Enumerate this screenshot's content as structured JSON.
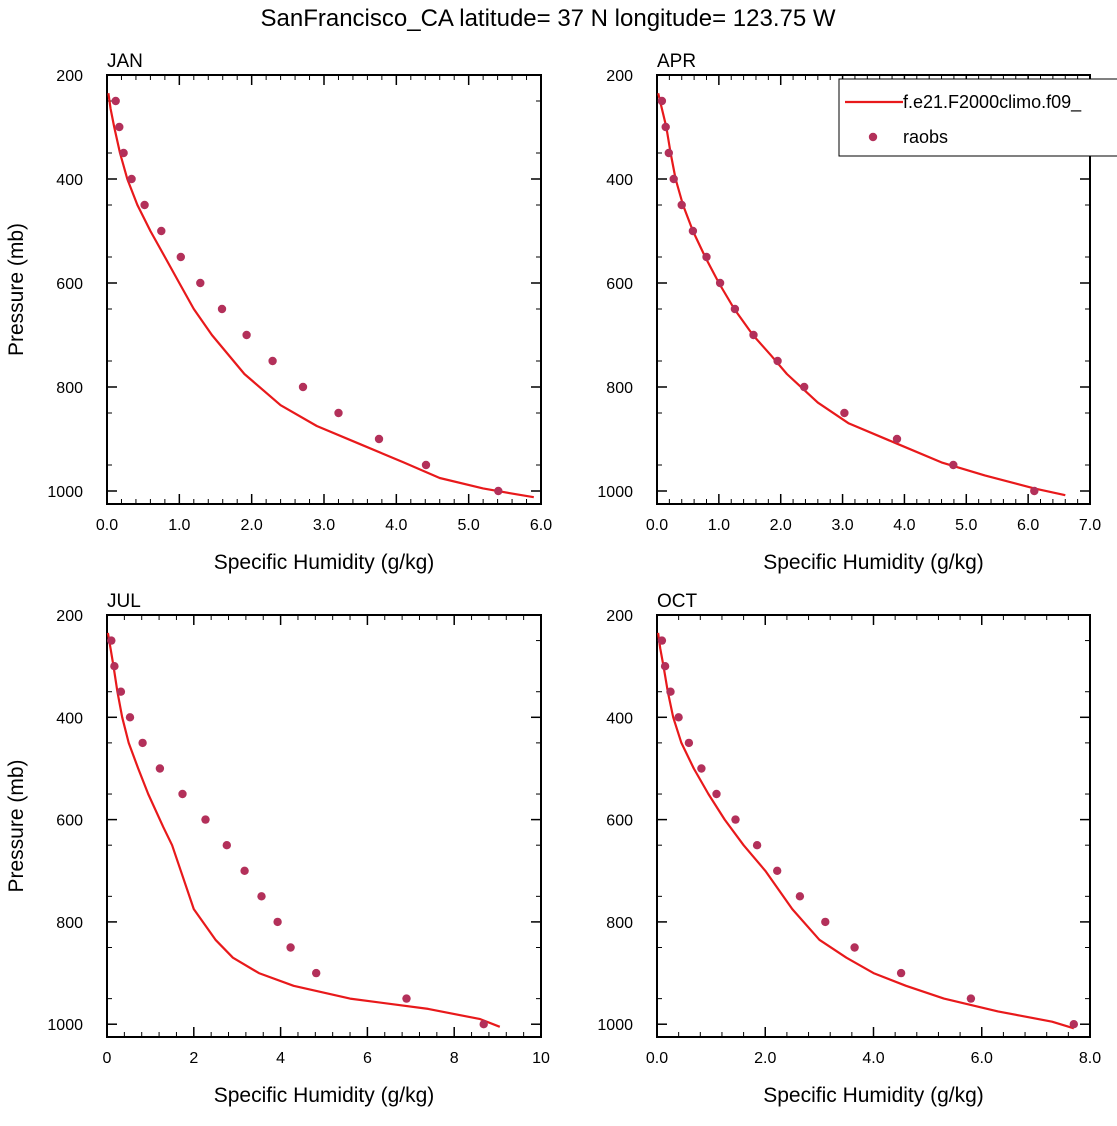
{
  "figure": {
    "title": "SanFrancisco_CA  latitude= 37 N longitude= 123.75 W"
  },
  "legend": {
    "model_label": "f.e21.F2000climo.f09_",
    "obs_label": "raobs",
    "model_color": "#e8191b",
    "obs_color": "#b3305a"
  },
  "chart_data": [
    {
      "type": "line",
      "title": "JAN",
      "xlabel": "Specific Humidity (g/kg)",
      "ylabel": "Pressure (mb)",
      "xlim": [
        0,
        6
      ],
      "ylim": [
        1025,
        200
      ],
      "xticks": [
        "0.0",
        "1.0",
        "2.0",
        "3.0",
        "4.0",
        "5.0",
        "6.0"
      ],
      "yticks": [
        "200",
        "400",
        "600",
        "800",
        "1000"
      ],
      "grid": false,
      "series": [
        {
          "name": "f.e21.F2000climo.f09_",
          "kind": "line",
          "x": [
            0.02,
            0.05,
            0.1,
            0.18,
            0.28,
            0.42,
            0.6,
            0.8,
            1.0,
            1.2,
            1.45,
            1.9,
            2.4,
            2.9,
            3.5,
            4.1,
            4.6,
            5.2,
            5.6,
            5.9
          ],
          "y": [
            235,
            265,
            300,
            350,
            400,
            450,
            500,
            550,
            600,
            650,
            700,
            775,
            835,
            875,
            910,
            945,
            975,
            995,
            1005,
            1012
          ]
        },
        {
          "name": "raobs",
          "kind": "scatter",
          "x": [
            0.12,
            0.17,
            0.23,
            0.34,
            0.52,
            0.75,
            1.02,
            1.29,
            1.59,
            1.93,
            2.29,
            2.71,
            3.2,
            3.76,
            4.41,
            5.41
          ],
          "y": [
            250,
            300,
            350,
            400,
            450,
            500,
            550,
            600,
            650,
            700,
            750,
            800,
            850,
            900,
            950,
            1000
          ]
        }
      ]
    },
    {
      "type": "line",
      "title": "APR",
      "xlabel": "Specific Humidity (g/kg)",
      "ylabel": "",
      "xlim": [
        0,
        7
      ],
      "ylim": [
        1025,
        200
      ],
      "xticks": [
        "0.0",
        "1.0",
        "2.0",
        "3.0",
        "4.0",
        "5.0",
        "6.0",
        "7.0"
      ],
      "yticks": [
        "200",
        "400",
        "600",
        "800",
        "1000"
      ],
      "grid": false,
      "series": [
        {
          "name": "f.e21.F2000climo.f09_",
          "kind": "line",
          "x": [
            0.02,
            0.08,
            0.15,
            0.22,
            0.3,
            0.42,
            0.58,
            0.78,
            1.0,
            1.25,
            1.55,
            1.85,
            2.1,
            2.6,
            3.1,
            3.9,
            4.6,
            5.3,
            6.1,
            6.6
          ],
          "y": [
            235,
            265,
            300,
            350,
            400,
            450,
            500,
            550,
            600,
            650,
            700,
            740,
            775,
            830,
            870,
            910,
            945,
            970,
            995,
            1008
          ]
        },
        {
          "name": "raobs",
          "kind": "scatter",
          "x": [
            0.08,
            0.14,
            0.19,
            0.27,
            0.4,
            0.58,
            0.8,
            1.02,
            1.26,
            1.56,
            1.95,
            2.38,
            3.03,
            3.88,
            4.79,
            6.1
          ],
          "y": [
            250,
            300,
            350,
            400,
            450,
            500,
            550,
            600,
            650,
            700,
            750,
            800,
            850,
            900,
            950,
            1000
          ]
        }
      ]
    },
    {
      "type": "line",
      "title": "JUL",
      "xlabel": "Specific Humidity (g/kg)",
      "ylabel": "Pressure (mb)",
      "xlim": [
        0,
        10
      ],
      "ylim": [
        1025,
        200
      ],
      "xticks": [
        "0",
        "2",
        "4",
        "6",
        "8",
        "10"
      ],
      "yticks": [
        "200",
        "400",
        "600",
        "800",
        "1000"
      ],
      "grid": false,
      "series": [
        {
          "name": "f.e21.F2000climo.f09_",
          "kind": "line",
          "x": [
            0.02,
            0.08,
            0.15,
            0.24,
            0.35,
            0.5,
            0.72,
            0.95,
            1.3,
            1.5,
            1.7,
            2.0,
            2.5,
            2.9,
            3.5,
            4.3,
            5.6,
            7.4,
            8.6,
            9.05
          ],
          "y": [
            235,
            265,
            300,
            350,
            400,
            450,
            500,
            550,
            615,
            650,
            700,
            775,
            835,
            870,
            900,
            925,
            950,
            970,
            990,
            1005
          ]
        },
        {
          "name": "raobs",
          "kind": "scatter",
          "x": [
            0.1,
            0.17,
            0.32,
            0.53,
            0.82,
            1.22,
            1.74,
            2.27,
            2.76,
            3.17,
            3.56,
            3.93,
            4.23,
            4.82,
            6.9,
            8.68
          ],
          "y": [
            250,
            300,
            350,
            400,
            450,
            500,
            550,
            600,
            650,
            700,
            750,
            800,
            850,
            900,
            950,
            1000
          ]
        }
      ]
    },
    {
      "type": "line",
      "title": "OCT",
      "xlabel": "Specific Humidity (g/kg)",
      "ylabel": "",
      "xlim": [
        0,
        8
      ],
      "ylim": [
        1025,
        200
      ],
      "xticks": [
        "0.0",
        "2.0",
        "4.0",
        "6.0",
        "8.0"
      ],
      "yticks": [
        "200",
        "400",
        "600",
        "800",
        "1000"
      ],
      "grid": false,
      "series": [
        {
          "name": "f.e21.F2000climo.f09_",
          "kind": "line",
          "x": [
            0.02,
            0.06,
            0.12,
            0.2,
            0.3,
            0.45,
            0.68,
            0.95,
            1.25,
            1.6,
            2.0,
            2.5,
            3.0,
            3.5,
            4.0,
            4.6,
            5.3,
            6.3,
            7.3,
            7.7
          ],
          "y": [
            235,
            265,
            300,
            350,
            400,
            450,
            500,
            550,
            600,
            650,
            700,
            775,
            835,
            870,
            900,
            925,
            950,
            975,
            995,
            1008
          ]
        },
        {
          "name": "raobs",
          "kind": "scatter",
          "x": [
            0.09,
            0.15,
            0.25,
            0.4,
            0.59,
            0.82,
            1.1,
            1.45,
            1.85,
            2.22,
            2.64,
            3.11,
            3.65,
            4.51,
            5.8,
            7.7
          ],
          "y": [
            250,
            300,
            350,
            400,
            450,
            500,
            550,
            600,
            650,
            700,
            750,
            800,
            850,
            900,
            950,
            1000
          ]
        }
      ]
    }
  ]
}
